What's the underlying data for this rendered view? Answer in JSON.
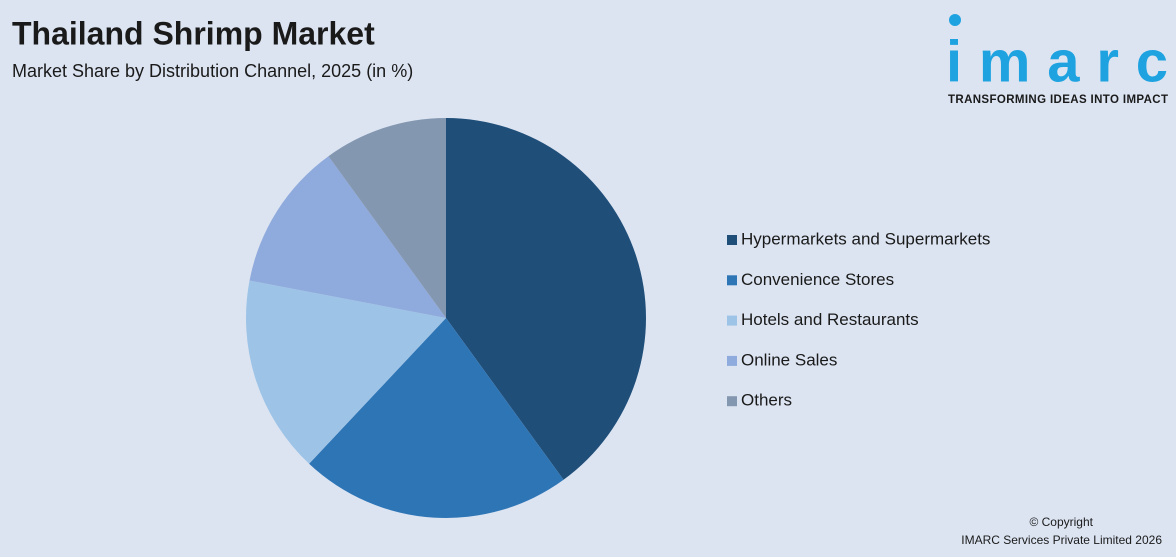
{
  "chart_data": {
    "type": "pie",
    "title": "Thailand Shrimp Market",
    "subtitle": "Market Share by Distribution Channel, 2025 (in %)",
    "categories": [
      "Hypermarkets and Supermarkets",
      "Convenience Stores",
      "Hotels and Restaurants",
      "Online Sales",
      "Others"
    ],
    "values": [
      40,
      22,
      16,
      12,
      10
    ],
    "colors": [
      "#1f4e79",
      "#2e75b6",
      "#9dc3e6",
      "#8faadc",
      "#8497b0"
    ],
    "legend": "right"
  },
  "logo": {
    "name": "imarc",
    "tagline": "TRANSFORMING IDEAS INTO IMPACT"
  },
  "footer": {
    "copyright": "© Copyright",
    "company": "IMARC Services Private Limited 2026"
  }
}
